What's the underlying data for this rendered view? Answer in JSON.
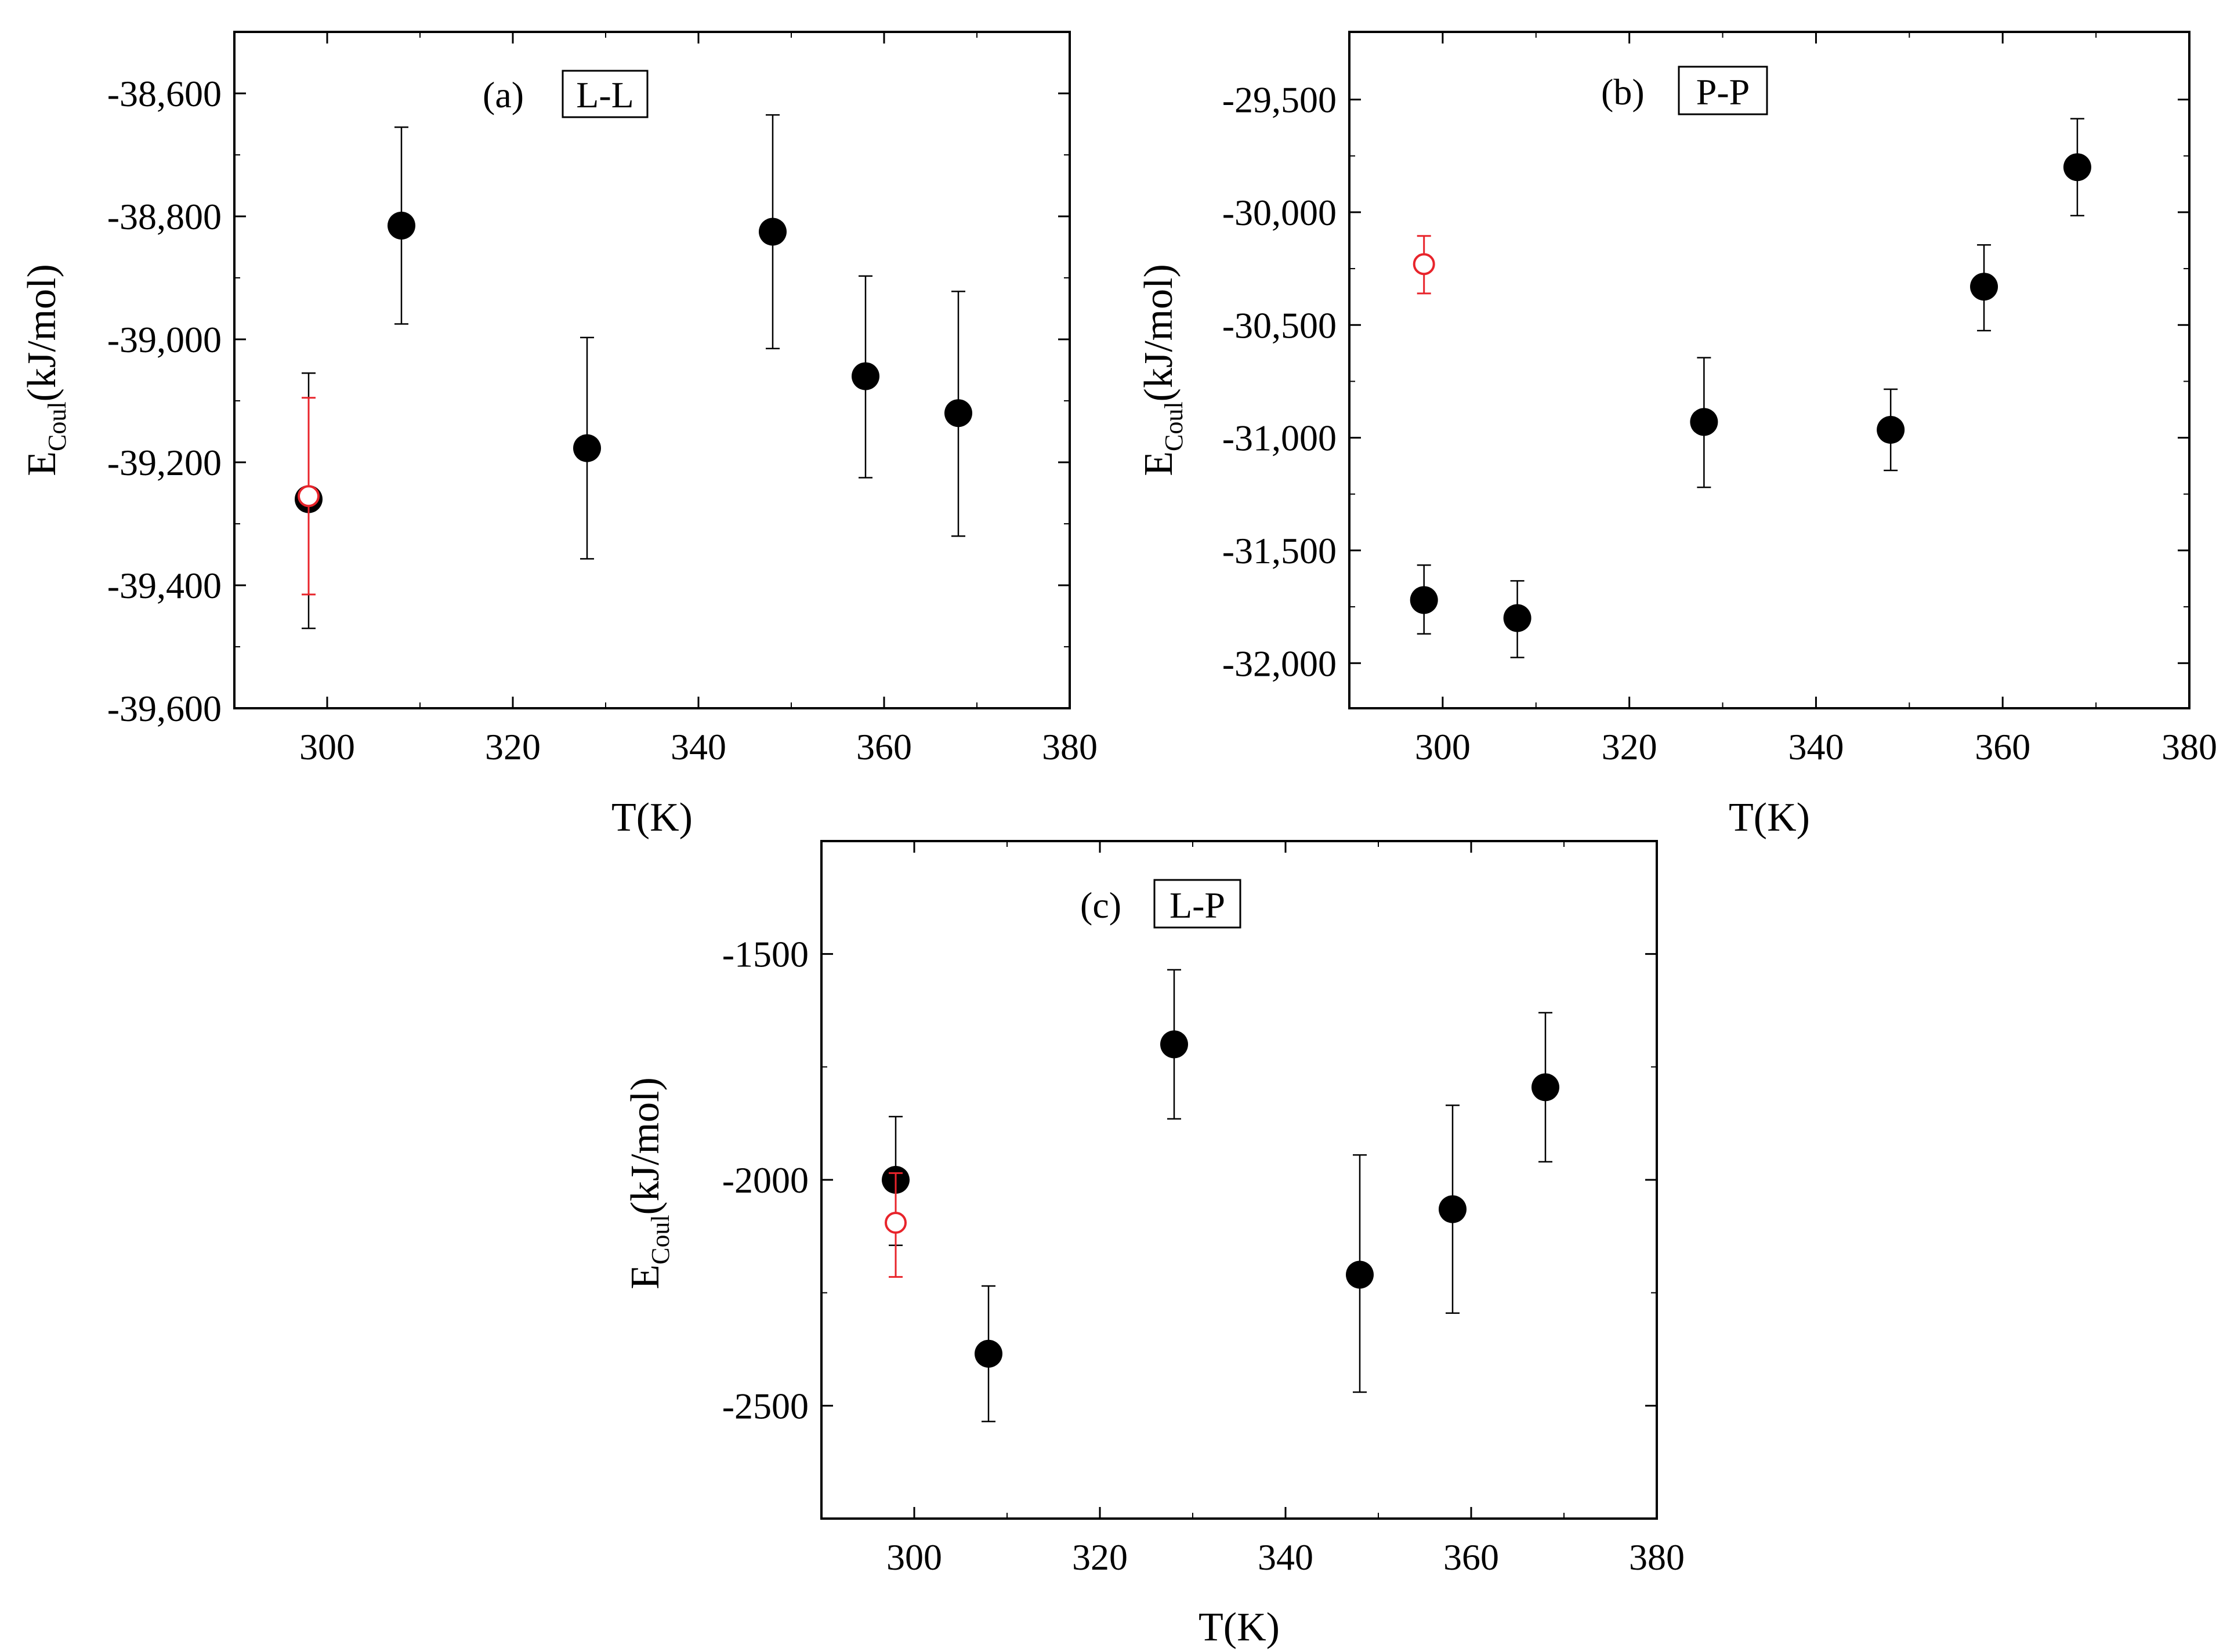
{
  "figure": {
    "panels": [
      "(a)",
      "(b)",
      "(c)"
    ]
  },
  "colors": {
    "main_series": "#000000",
    "reference_series": "#e8242b",
    "axis": "#000000"
  },
  "chart_data": [
    {
      "id": "a",
      "type": "scatter",
      "panel_label": "(a)",
      "box_label": "L-L",
      "xlabel": "T(K)",
      "ylabel_main": "E",
      "ylabel_sub": "Coul",
      "ylabel_unit": "(kJ/mol)",
      "xlim": [
        290,
        380
      ],
      "ylim": [
        -39600,
        -38500
      ],
      "xticks": [
        300,
        320,
        340,
        360,
        380
      ],
      "xtick_labels": [
        "300",
        "320",
        "340",
        "360",
        "380"
      ],
      "yticks": [
        -38600,
        -38800,
        -39000,
        -39200,
        -39400,
        -39600
      ],
      "ytick_labels": [
        "-38,600",
        "-38,800",
        "-39,000",
        "-39,200",
        "-39,400",
        "-39,600"
      ],
      "series": [
        {
          "name": "main",
          "marker": "filled-circle",
          "color": "#000000",
          "points": [
            {
              "x": 298,
              "y": -39260,
              "err_low": -39470,
              "err_high": -39055
            },
            {
              "x": 308,
              "y": -38815,
              "err_low": -38975,
              "err_high": -38655
            },
            {
              "x": 328,
              "y": -39177,
              "err_low": -39357,
              "err_high": -38997
            },
            {
              "x": 348,
              "y": -38825,
              "err_low": -39015,
              "err_high": -38635
            },
            {
              "x": 358,
              "y": -39060,
              "err_low": -39225,
              "err_high": -38897
            },
            {
              "x": 368,
              "y": -39120,
              "err_low": -39320,
              "err_high": -38922
            }
          ]
        },
        {
          "name": "reference",
          "marker": "open-circle",
          "color": "#e8242b",
          "points": [
            {
              "x": 298,
              "y": -39255,
              "err_low": -39415,
              "err_high": -39095
            }
          ]
        }
      ]
    },
    {
      "id": "b",
      "type": "scatter",
      "panel_label": "(b)",
      "box_label": "P-P",
      "xlabel": "T(K)",
      "ylabel_main": "E",
      "ylabel_sub": "Coul",
      "ylabel_unit": "(kJ/mol)",
      "xlim": [
        290,
        380
      ],
      "ylim": [
        -32200,
        -29200
      ],
      "xticks": [
        300,
        320,
        340,
        360,
        380
      ],
      "xtick_labels": [
        "300",
        "320",
        "340",
        "360",
        "380"
      ],
      "yticks": [
        -29500,
        -30000,
        -30500,
        -31000,
        -31500,
        -32000
      ],
      "ytick_labels": [
        "-29,500",
        "-30,000",
        "-30,500",
        "-31,000",
        "-31,500",
        "-32,000"
      ],
      "series": [
        {
          "name": "main",
          "marker": "filled-circle",
          "color": "#000000",
          "points": [
            {
              "x": 298,
              "y": -31720,
              "err_low": -31870,
              "err_high": -31565
            },
            {
              "x": 308,
              "y": -31800,
              "err_low": -31975,
              "err_high": -31635
            },
            {
              "x": 328,
              "y": -30930,
              "err_low": -31220,
              "err_high": -30645
            },
            {
              "x": 348,
              "y": -30965,
              "err_low": -31145,
              "err_high": -30785
            },
            {
              "x": 358,
              "y": -30330,
              "err_low": -30525,
              "err_high": -30145
            },
            {
              "x": 368,
              "y": -29800,
              "err_low": -30015,
              "err_high": -29585
            }
          ]
        },
        {
          "name": "reference",
          "marker": "open-circle",
          "color": "#e8242b",
          "points": [
            {
              "x": 298,
              "y": -30230,
              "err_low": -30360,
              "err_high": -30105
            }
          ]
        }
      ]
    },
    {
      "id": "c",
      "type": "scatter",
      "panel_label": "(c)",
      "box_label": "L-P",
      "xlabel": "T(K)",
      "ylabel_main": "E",
      "ylabel_sub": "Coul",
      "ylabel_unit": "(kJ/mol)",
      "xlim": [
        290,
        380
      ],
      "ylim": [
        -2750,
        -1250
      ],
      "xticks": [
        300,
        320,
        340,
        360,
        380
      ],
      "xtick_labels": [
        "300",
        "320",
        "340",
        "360",
        "380"
      ],
      "yticks": [
        -1500,
        -2000,
        -2500
      ],
      "ytick_labels": [
        "-1500",
        "-2000",
        "-2500"
      ],
      "series": [
        {
          "name": "main",
          "marker": "filled-circle",
          "color": "#000000",
          "points": [
            {
              "x": 298,
              "y": -2000,
              "err_low": -2145,
              "err_high": -1860
            },
            {
              "x": 308,
              "y": -2385,
              "err_low": -2535,
              "err_high": -2235
            },
            {
              "x": 328,
              "y": -1700,
              "err_low": -1865,
              "err_high": -1535
            },
            {
              "x": 348,
              "y": -2210,
              "err_low": -2470,
              "err_high": -1945
            },
            {
              "x": 358,
              "y": -2065,
              "err_low": -2295,
              "err_high": -1835
            },
            {
              "x": 368,
              "y": -1795,
              "err_low": -1960,
              "err_high": -1630
            }
          ]
        },
        {
          "name": "reference",
          "marker": "open-circle",
          "color": "#e8242b",
          "points": [
            {
              "x": 298,
              "y": -2095,
              "err_low": -2215,
              "err_high": -1985
            }
          ]
        }
      ]
    }
  ]
}
